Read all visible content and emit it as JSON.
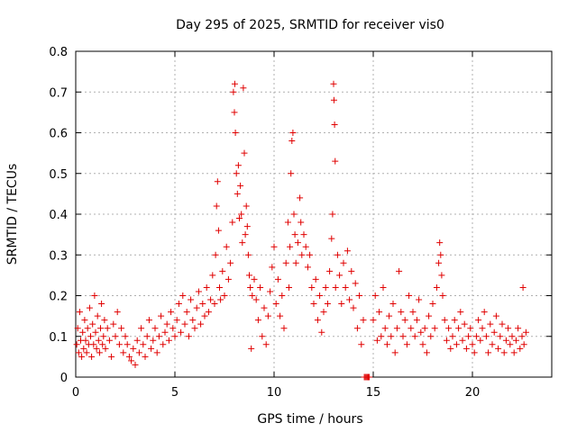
{
  "chart_data": {
    "type": "scatter",
    "title": "Day 295 of 2025, SRMTID for receiver vis0",
    "xlabel": "GPS time / hours",
    "ylabel": "SRMTID / TECUs",
    "xlim": [
      0,
      24
    ],
    "ylim": [
      0,
      0.8
    ],
    "xticks": [
      0,
      5,
      10,
      15,
      20
    ],
    "yticks": [
      0,
      0.1,
      0.2,
      0.3,
      0.4,
      0.5,
      0.6,
      0.7,
      0.8
    ],
    "xtick_labels": [
      "0",
      "5",
      "10",
      "15",
      "20"
    ],
    "ytick_labels": [
      "0",
      "0.1",
      "0.2",
      "0.3",
      "0.4",
      "0.5",
      "0.6",
      "0.7",
      "0.8"
    ],
    "grid": true,
    "marker": "+",
    "color": "#e00000",
    "series": [
      {
        "name": "vis0",
        "points": [
          [
            0.05,
            0.08
          ],
          [
            0.1,
            0.12
          ],
          [
            0.15,
            0.06
          ],
          [
            0.2,
            0.16
          ],
          [
            0.25,
            0.09
          ],
          [
            0.3,
            0.05
          ],
          [
            0.35,
            0.11
          ],
          [
            0.4,
            0.07
          ],
          [
            0.45,
            0.14
          ],
          [
            0.5,
            0.09
          ],
          [
            0.55,
            0.06
          ],
          [
            0.6,
            0.12
          ],
          [
            0.65,
            0.08
          ],
          [
            0.7,
            0.17
          ],
          [
            0.75,
            0.1
          ],
          [
            0.8,
            0.05
          ],
          [
            0.85,
            0.13
          ],
          [
            0.9,
            0.08
          ],
          [
            0.95,
            0.2
          ],
          [
            1.0,
            0.11
          ],
          [
            1.05,
            0.07
          ],
          [
            1.1,
            0.15
          ],
          [
            1.15,
            0.09
          ],
          [
            1.2,
            0.06
          ],
          [
            1.25,
            0.12
          ],
          [
            1.3,
            0.18
          ],
          [
            1.35,
            0.08
          ],
          [
            1.4,
            0.1
          ],
          [
            1.45,
            0.14
          ],
          [
            1.5,
            0.07
          ],
          [
            1.6,
            0.12
          ],
          [
            1.7,
            0.09
          ],
          [
            1.8,
            0.05
          ],
          [
            1.9,
            0.13
          ],
          [
            2.0,
            0.1
          ],
          [
            2.1,
            0.16
          ],
          [
            2.2,
            0.08
          ],
          [
            2.3,
            0.12
          ],
          [
            2.4,
            0.06
          ],
          [
            2.5,
            0.1
          ],
          [
            2.6,
            0.08
          ],
          [
            2.7,
            0.05
          ],
          [
            2.8,
            0.04
          ],
          [
            2.9,
            0.07
          ],
          [
            3.0,
            0.03
          ],
          [
            3.1,
            0.09
          ],
          [
            3.2,
            0.06
          ],
          [
            3.3,
            0.12
          ],
          [
            3.4,
            0.08
          ],
          [
            3.5,
            0.05
          ],
          [
            3.6,
            0.1
          ],
          [
            3.7,
            0.14
          ],
          [
            3.8,
            0.07
          ],
          [
            3.9,
            0.09
          ],
          [
            4.0,
            0.12
          ],
          [
            4.1,
            0.06
          ],
          [
            4.2,
            0.1
          ],
          [
            4.3,
            0.15
          ],
          [
            4.4,
            0.08
          ],
          [
            4.5,
            0.11
          ],
          [
            4.6,
            0.13
          ],
          [
            4.7,
            0.09
          ],
          [
            4.8,
            0.16
          ],
          [
            4.9,
            0.12
          ],
          [
            5.0,
            0.1
          ],
          [
            5.1,
            0.14
          ],
          [
            5.2,
            0.18
          ],
          [
            5.3,
            0.11
          ],
          [
            5.4,
            0.2
          ],
          [
            5.5,
            0.13
          ],
          [
            5.6,
            0.16
          ],
          [
            5.7,
            0.1
          ],
          [
            5.8,
            0.19
          ],
          [
            5.9,
            0.14
          ],
          [
            6.0,
            0.12
          ],
          [
            6.1,
            0.17
          ],
          [
            6.2,
            0.21
          ],
          [
            6.3,
            0.13
          ],
          [
            6.4,
            0.18
          ],
          [
            6.5,
            0.15
          ],
          [
            6.6,
            0.22
          ],
          [
            6.7,
            0.16
          ],
          [
            6.8,
            0.19
          ],
          [
            6.9,
            0.25
          ],
          [
            7.0,
            0.18
          ],
          [
            7.05,
            0.3
          ],
          [
            7.1,
            0.42
          ],
          [
            7.15,
            0.48
          ],
          [
            7.2,
            0.36
          ],
          [
            7.25,
            0.22
          ],
          [
            7.3,
            0.19
          ],
          [
            7.4,
            0.26
          ],
          [
            7.5,
            0.2
          ],
          [
            7.6,
            0.32
          ],
          [
            7.7,
            0.24
          ],
          [
            7.8,
            0.28
          ],
          [
            7.9,
            0.38
          ],
          [
            7.95,
            0.7
          ],
          [
            8.0,
            0.65
          ],
          [
            8.02,
            0.72
          ],
          [
            8.05,
            0.6
          ],
          [
            8.1,
            0.5
          ],
          [
            8.15,
            0.45
          ],
          [
            8.2,
            0.52
          ],
          [
            8.25,
            0.39
          ],
          [
            8.3,
            0.47
          ],
          [
            8.35,
            0.4
          ],
          [
            8.4,
            0.33
          ],
          [
            8.45,
            0.71
          ],
          [
            8.5,
            0.55
          ],
          [
            8.55,
            0.35
          ],
          [
            8.6,
            0.42
          ],
          [
            8.65,
            0.37
          ],
          [
            8.7,
            0.3
          ],
          [
            8.75,
            0.25
          ],
          [
            8.8,
            0.22
          ],
          [
            8.85,
            0.07
          ],
          [
            8.9,
            0.2
          ],
          [
            9.0,
            0.24
          ],
          [
            9.1,
            0.19
          ],
          [
            9.2,
            0.14
          ],
          [
            9.3,
            0.22
          ],
          [
            9.4,
            0.1
          ],
          [
            9.5,
            0.17
          ],
          [
            9.6,
            0.08
          ],
          [
            9.7,
            0.15
          ],
          [
            9.8,
            0.21
          ],
          [
            9.9,
            0.27
          ],
          [
            10.0,
            0.32
          ],
          [
            10.1,
            0.18
          ],
          [
            10.2,
            0.24
          ],
          [
            10.3,
            0.15
          ],
          [
            10.4,
            0.2
          ],
          [
            10.5,
            0.12
          ],
          [
            10.6,
            0.28
          ],
          [
            10.7,
            0.38
          ],
          [
            10.75,
            0.22
          ],
          [
            10.8,
            0.32
          ],
          [
            10.85,
            0.5
          ],
          [
            10.9,
            0.58
          ],
          [
            10.95,
            0.6
          ],
          [
            11.0,
            0.4
          ],
          [
            11.05,
            0.35
          ],
          [
            11.1,
            0.28
          ],
          [
            11.2,
            0.33
          ],
          [
            11.3,
            0.44
          ],
          [
            11.35,
            0.38
          ],
          [
            11.4,
            0.3
          ],
          [
            11.5,
            0.35
          ],
          [
            11.6,
            0.32
          ],
          [
            11.7,
            0.27
          ],
          [
            11.8,
            0.3
          ],
          [
            11.9,
            0.22
          ],
          [
            12.0,
            0.18
          ],
          [
            12.1,
            0.24
          ],
          [
            12.2,
            0.14
          ],
          [
            12.3,
            0.2
          ],
          [
            12.4,
            0.11
          ],
          [
            12.5,
            0.16
          ],
          [
            12.6,
            0.22
          ],
          [
            12.7,
            0.18
          ],
          [
            12.8,
            0.26
          ],
          [
            12.9,
            0.34
          ],
          [
            12.95,
            0.4
          ],
          [
            13.0,
            0.72
          ],
          [
            13.02,
            0.68
          ],
          [
            13.05,
            0.62
          ],
          [
            13.08,
            0.53
          ],
          [
            13.1,
            0.22
          ],
          [
            13.2,
            0.3
          ],
          [
            13.3,
            0.25
          ],
          [
            13.4,
            0.18
          ],
          [
            13.5,
            0.28
          ],
          [
            13.6,
            0.22
          ],
          [
            13.7,
            0.31
          ],
          [
            13.8,
            0.19
          ],
          [
            13.9,
            0.26
          ],
          [
            14.0,
            0.17
          ],
          [
            14.1,
            0.23
          ],
          [
            14.2,
            0.12
          ],
          [
            14.3,
            0.2
          ],
          [
            14.4,
            0.08
          ],
          [
            14.5,
            0.14
          ],
          [
            14.55,
            0.0
          ],
          [
            14.6,
            0.0
          ],
          [
            14.65,
            0.0
          ],
          [
            14.7,
            0.0
          ],
          [
            14.75,
            0.0
          ],
          [
            14.8,
            0.0
          ],
          [
            15.0,
            0.14
          ],
          [
            15.1,
            0.2
          ],
          [
            15.2,
            0.09
          ],
          [
            15.3,
            0.16
          ],
          [
            15.4,
            0.1
          ],
          [
            15.5,
            0.22
          ],
          [
            15.6,
            0.12
          ],
          [
            15.7,
            0.08
          ],
          [
            15.8,
            0.15
          ],
          [
            15.9,
            0.1
          ],
          [
            16.0,
            0.18
          ],
          [
            16.1,
            0.06
          ],
          [
            16.2,
            0.12
          ],
          [
            16.3,
            0.26
          ],
          [
            16.4,
            0.16
          ],
          [
            16.5,
            0.1
          ],
          [
            16.6,
            0.14
          ],
          [
            16.7,
            0.08
          ],
          [
            16.8,
            0.2
          ],
          [
            16.9,
            0.12
          ],
          [
            17.0,
            0.16
          ],
          [
            17.1,
            0.1
          ],
          [
            17.2,
            0.14
          ],
          [
            17.3,
            0.19
          ],
          [
            17.4,
            0.11
          ],
          [
            17.5,
            0.08
          ],
          [
            17.6,
            0.12
          ],
          [
            17.7,
            0.06
          ],
          [
            17.8,
            0.15
          ],
          [
            17.9,
            0.1
          ],
          [
            18.0,
            0.18
          ],
          [
            18.1,
            0.12
          ],
          [
            18.2,
            0.22
          ],
          [
            18.3,
            0.28
          ],
          [
            18.35,
            0.33
          ],
          [
            18.4,
            0.3
          ],
          [
            18.45,
            0.25
          ],
          [
            18.5,
            0.2
          ],
          [
            18.6,
            0.14
          ],
          [
            18.7,
            0.09
          ],
          [
            18.8,
            0.12
          ],
          [
            18.9,
            0.07
          ],
          [
            19.0,
            0.1
          ],
          [
            19.1,
            0.14
          ],
          [
            19.2,
            0.08
          ],
          [
            19.3,
            0.12
          ],
          [
            19.4,
            0.16
          ],
          [
            19.5,
            0.09
          ],
          [
            19.6,
            0.13
          ],
          [
            19.7,
            0.07
          ],
          [
            19.8,
            0.1
          ],
          [
            19.9,
            0.12
          ],
          [
            20.0,
            0.08
          ],
          [
            20.1,
            0.06
          ],
          [
            20.2,
            0.1
          ],
          [
            20.3,
            0.14
          ],
          [
            20.4,
            0.09
          ],
          [
            20.5,
            0.12
          ],
          [
            20.6,
            0.16
          ],
          [
            20.7,
            0.1
          ],
          [
            20.8,
            0.06
          ],
          [
            20.9,
            0.13
          ],
          [
            21.0,
            0.08
          ],
          [
            21.1,
            0.11
          ],
          [
            21.2,
            0.15
          ],
          [
            21.3,
            0.07
          ],
          [
            21.4,
            0.1
          ],
          [
            21.5,
            0.13
          ],
          [
            21.6,
            0.06
          ],
          [
            21.7,
            0.09
          ],
          [
            21.8,
            0.12
          ],
          [
            21.9,
            0.08
          ],
          [
            22.0,
            0.1
          ],
          [
            22.1,
            0.06
          ],
          [
            22.2,
            0.09
          ],
          [
            22.3,
            0.12
          ],
          [
            22.4,
            0.07
          ],
          [
            22.5,
            0.1
          ],
          [
            22.55,
            0.22
          ],
          [
            22.6,
            0.08
          ],
          [
            22.7,
            0.11
          ]
        ]
      }
    ]
  }
}
